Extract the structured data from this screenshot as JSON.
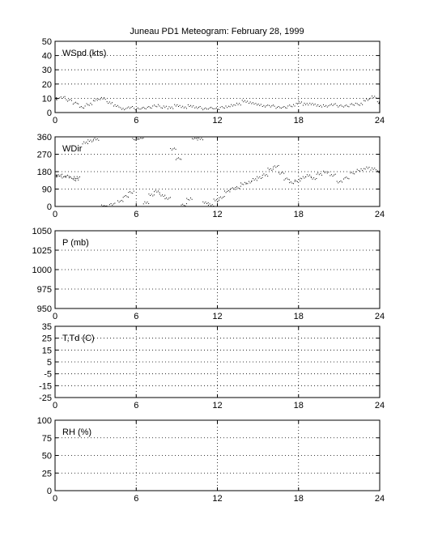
{
  "title": "Juneau PD1 Meteogram:  February 28, 1999",
  "chart_data": [
    {
      "type": "scatter",
      "label": "WSpd (kts)",
      "ylim": [
        0,
        50
      ],
      "yticks": [
        0,
        10,
        20,
        30,
        40,
        50
      ],
      "xlim": [
        0,
        24
      ],
      "xticks": [
        0,
        6,
        12,
        18,
        24
      ],
      "grid": true,
      "series": [
        {
          "x": [
            0,
            0.5,
            1,
            1.5,
            2,
            2.5,
            3,
            3.5,
            4,
            4.5,
            5,
            5.5,
            6,
            6.5,
            7,
            7.5,
            8,
            8.5,
            9,
            9.5,
            10,
            10.5,
            11,
            11.5,
            12,
            12.5,
            13,
            13.5,
            14,
            14.5,
            15,
            15.5,
            16,
            16.5,
            17,
            17.5,
            18,
            18.5,
            19,
            19.5,
            20,
            20.5,
            21,
            21.5,
            22,
            22.5,
            23,
            23.5,
            24
          ],
          "y": [
            10,
            11,
            9,
            7,
            4,
            6,
            9,
            10,
            7,
            5,
            3,
            4,
            3,
            3.5,
            4,
            5,
            4,
            3.5,
            5,
            4,
            5,
            4,
            3,
            3.5,
            3,
            4,
            5,
            6,
            8,
            7,
            6,
            5,
            5,
            4,
            4,
            5,
            7,
            6,
            6,
            5,
            5,
            6,
            5,
            5,
            6,
            6,
            9,
            11,
            7
          ]
        }
      ]
    },
    {
      "type": "scatter",
      "label": "WDir",
      "ylim": [
        0,
        360
      ],
      "yticks": [
        0,
        90,
        180,
        270,
        360
      ],
      "xlim": [
        0,
        24
      ],
      "xticks": [
        0,
        6,
        12,
        18,
        24
      ],
      "grid": true,
      "series": [
        {
          "x": [
            0,
            0.3,
            0.6,
            0.9,
            1.2,
            1.5,
            1.6,
            2.2,
            2.6,
            3,
            3.6,
            4.2,
            4.8,
            5.2,
            5.6,
            5.9,
            6.3,
            6.7,
            7.1,
            7.5,
            7.9,
            8.3,
            8.7,
            9.1,
            9.5,
            9.9,
            10.3,
            10.7,
            11.1,
            11.5,
            11.9,
            12.3,
            12.7,
            13.1,
            13.5,
            13.9,
            14.3,
            14.7,
            15.1,
            15.5,
            15.9,
            16.3,
            16.7,
            17.1,
            17.5,
            17.9,
            18.3,
            18.7,
            19.1,
            19.5,
            20.0,
            20.5,
            21.0,
            21.5,
            22.0,
            22.5,
            23.0,
            23.5,
            24.0
          ],
          "y": [
            160,
            165,
            155,
            160,
            150,
            140,
            150,
            330,
            340,
            350,
            5,
            15,
            30,
            55,
            75,
            350,
            355,
            20,
            60,
            80,
            60,
            45,
            300,
            250,
            10,
            40,
            355,
            350,
            20,
            10,
            35,
            50,
            80,
            95,
            100,
            120,
            125,
            140,
            150,
            165,
            195,
            210,
            175,
            145,
            125,
            135,
            150,
            160,
            145,
            170,
            180,
            165,
            130,
            150,
            175,
            190,
            200,
            195,
            180
          ]
        }
      ]
    },
    {
      "type": "scatter",
      "label": "P (mb)",
      "ylim": [
        950,
        1050
      ],
      "yticks": [
        950,
        975,
        1000,
        1025,
        1050
      ],
      "xlim": [
        0,
        24
      ],
      "xticks": [
        0,
        6,
        12,
        18,
        24
      ],
      "grid": true,
      "series": []
    },
    {
      "type": "scatter",
      "label": "T,Td (C)",
      "ylim": [
        -25,
        35
      ],
      "yticks": [
        -25,
        -15,
        -5,
        5,
        15,
        25,
        35
      ],
      "xlim": [
        0,
        24
      ],
      "xticks": [
        0,
        6,
        12,
        18,
        24
      ],
      "grid": true,
      "series": []
    },
    {
      "type": "scatter",
      "label": "RH (%)",
      "ylim": [
        0,
        100
      ],
      "yticks": [
        0,
        25,
        50,
        75,
        100
      ],
      "xlim": [
        0,
        24
      ],
      "xticks": [
        0,
        6,
        12,
        18,
        24
      ],
      "grid": true,
      "series": []
    }
  ]
}
